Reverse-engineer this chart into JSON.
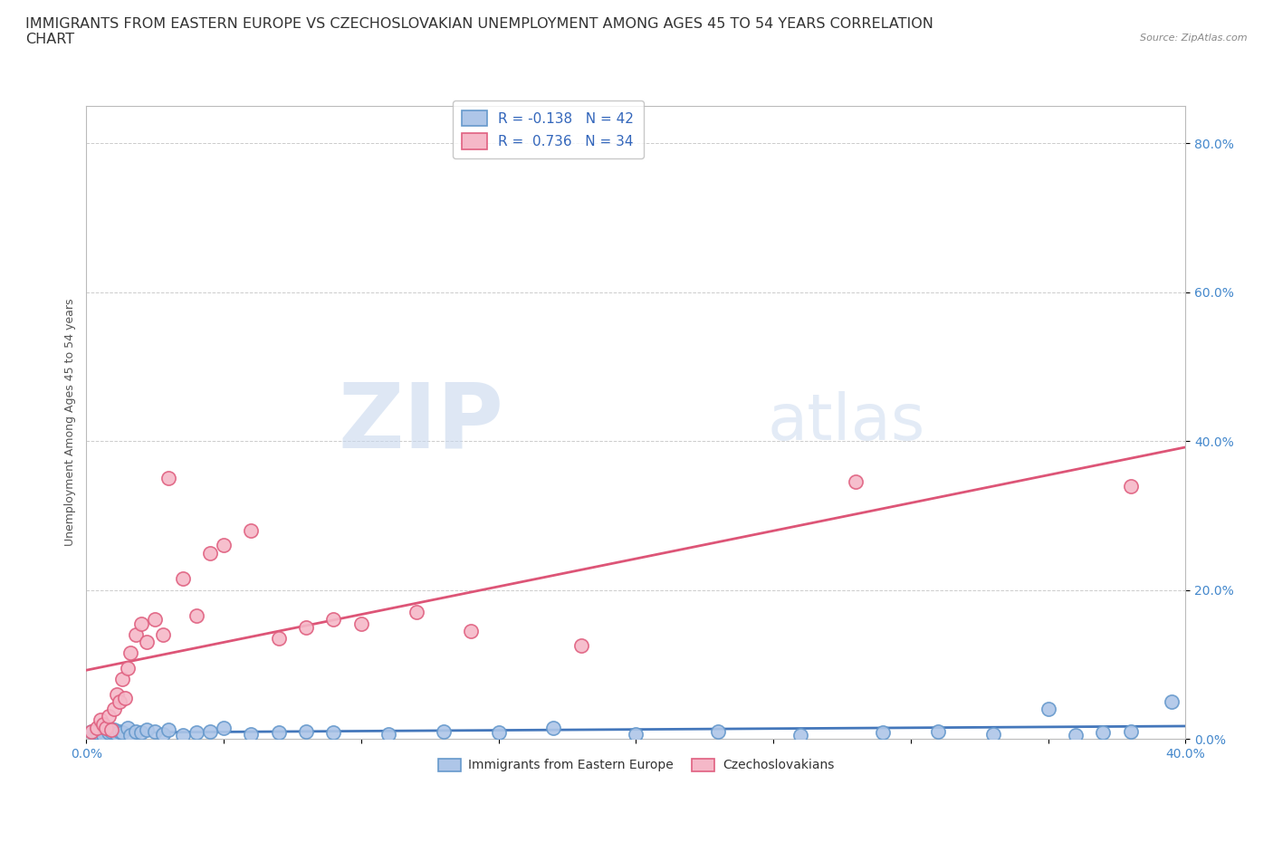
{
  "title": "IMMIGRANTS FROM EASTERN EUROPE VS CZECHOSLOVAKIAN UNEMPLOYMENT AMONG AGES 45 TO 54 YEARS CORRELATION\nCHART",
  "source": "Source: ZipAtlas.com",
  "ylabel": "Unemployment Among Ages 45 to 54 years",
  "xlim": [
    0.0,
    0.4
  ],
  "ylim": [
    0.0,
    0.85
  ],
  "xticks": [
    0.0,
    0.05,
    0.1,
    0.15,
    0.2,
    0.25,
    0.3,
    0.35,
    0.4
  ],
  "ytick_positions": [
    0.0,
    0.2,
    0.4,
    0.6,
    0.8
  ],
  "ytick_labels": [
    "0.0%",
    "20.0%",
    "40.0%",
    "60.0%",
    "80.0%"
  ],
  "xtick_labels": [
    "0.0%",
    "",
    "",
    "",
    "",
    "",
    "",
    "",
    "40.0%"
  ],
  "background_color": "#ffffff",
  "grid_color": "#cccccc",
  "blue_scatter_x": [
    0.002,
    0.004,
    0.005,
    0.006,
    0.007,
    0.008,
    0.009,
    0.01,
    0.011,
    0.012,
    0.013,
    0.015,
    0.016,
    0.018,
    0.02,
    0.022,
    0.025,
    0.028,
    0.03,
    0.035,
    0.04,
    0.045,
    0.05,
    0.06,
    0.07,
    0.08,
    0.09,
    0.11,
    0.13,
    0.15,
    0.17,
    0.2,
    0.23,
    0.26,
    0.29,
    0.31,
    0.33,
    0.35,
    0.36,
    0.37,
    0.38,
    0.395
  ],
  "blue_scatter_y": [
    0.01,
    0.008,
    0.012,
    0.005,
    0.015,
    0.008,
    0.01,
    0.012,
    0.006,
    0.01,
    0.008,
    0.015,
    0.005,
    0.01,
    0.008,
    0.012,
    0.01,
    0.006,
    0.012,
    0.005,
    0.008,
    0.01,
    0.015,
    0.006,
    0.008,
    0.01,
    0.008,
    0.006,
    0.01,
    0.008,
    0.015,
    0.006,
    0.01,
    0.005,
    0.008,
    0.01,
    0.006,
    0.04,
    0.005,
    0.008,
    0.01,
    0.05
  ],
  "pink_scatter_x": [
    0.002,
    0.004,
    0.005,
    0.006,
    0.007,
    0.008,
    0.009,
    0.01,
    0.011,
    0.012,
    0.013,
    0.014,
    0.015,
    0.016,
    0.018,
    0.02,
    0.022,
    0.025,
    0.028,
    0.03,
    0.035,
    0.04,
    0.045,
    0.05,
    0.06,
    0.07,
    0.08,
    0.09,
    0.1,
    0.12,
    0.14,
    0.18,
    0.28,
    0.38
  ],
  "pink_scatter_y": [
    0.01,
    0.015,
    0.025,
    0.02,
    0.015,
    0.03,
    0.012,
    0.04,
    0.06,
    0.05,
    0.08,
    0.055,
    0.095,
    0.115,
    0.14,
    0.155,
    0.13,
    0.16,
    0.14,
    0.35,
    0.215,
    0.165,
    0.25,
    0.26,
    0.28,
    0.135,
    0.15,
    0.16,
    0.155,
    0.17,
    0.145,
    0.125,
    0.345,
    0.34
  ],
  "blue_color": "#aec6e8",
  "pink_color": "#f5b8c8",
  "blue_edge_color": "#6699cc",
  "pink_edge_color": "#e06080",
  "blue_line_color": "#4477bb",
  "pink_line_color": "#dd5577",
  "blue_R": -0.138,
  "blue_N": 42,
  "pink_R": 0.736,
  "pink_N": 34,
  "legend_label_blue": "Immigrants from Eastern Europe",
  "legend_label_pink": "Czechoslovakians",
  "title_fontsize": 11.5,
  "axis_label_fontsize": 9,
  "tick_fontsize": 10,
  "legend_fontsize": 11
}
